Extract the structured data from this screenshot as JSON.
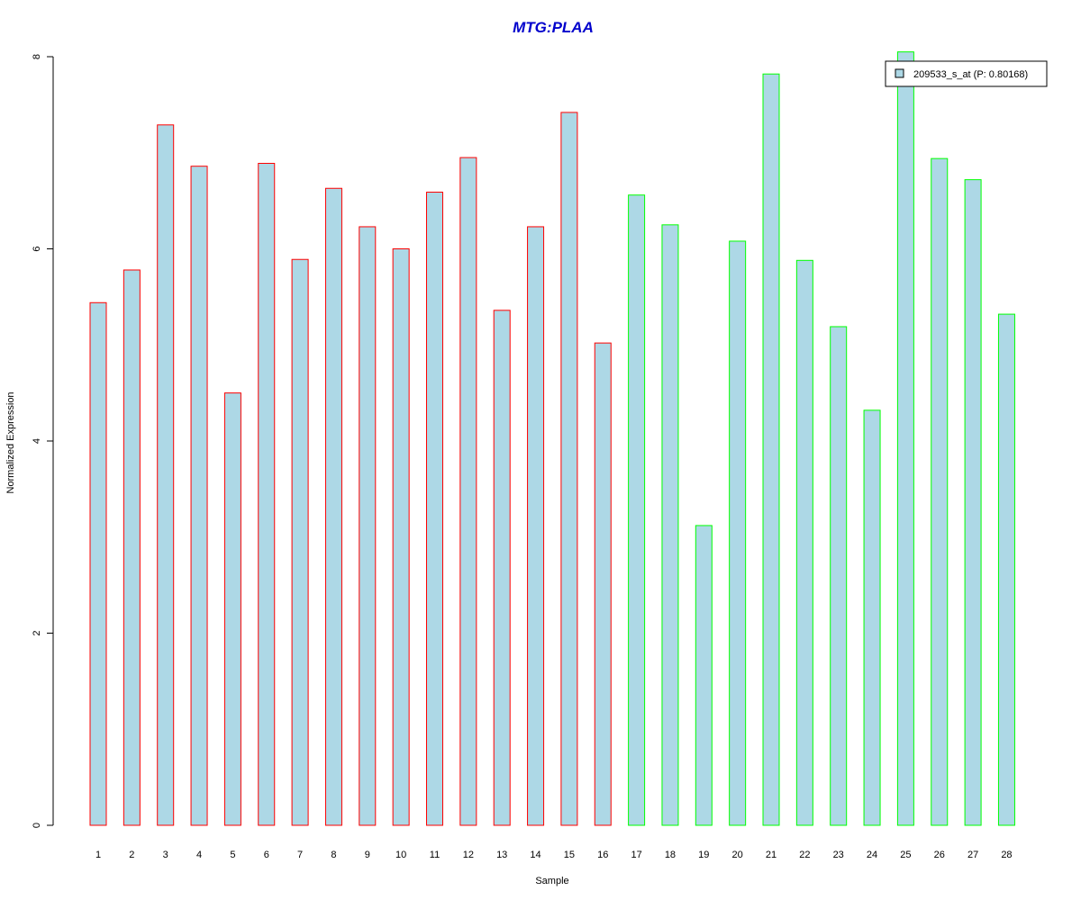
{
  "chart_data": {
    "type": "bar",
    "title": "MTG:PLAA",
    "xlabel": "Sample",
    "ylabel": "Normalized Expression",
    "ylim": [
      0,
      8
    ],
    "yticks": [
      "0",
      "2",
      "4",
      "6",
      "8"
    ],
    "categories": [
      "1",
      "2",
      "3",
      "4",
      "5",
      "6",
      "7",
      "8",
      "9",
      "10",
      "11",
      "12",
      "13",
      "14",
      "15",
      "16",
      "17",
      "18",
      "19",
      "20",
      "21",
      "22",
      "23",
      "24",
      "25",
      "26",
      "27",
      "28"
    ],
    "values": [
      5.44,
      5.78,
      7.29,
      6.86,
      4.5,
      6.89,
      5.89,
      6.63,
      6.23,
      6.0,
      6.59,
      6.95,
      5.36,
      6.23,
      7.42,
      5.02,
      6.56,
      6.25,
      3.12,
      6.08,
      7.82,
      5.88,
      5.19,
      4.32,
      8.05,
      6.94,
      6.72,
      5.32
    ],
    "groups": [
      "red",
      "red",
      "red",
      "red",
      "red",
      "red",
      "red",
      "red",
      "red",
      "red",
      "red",
      "red",
      "red",
      "red",
      "red",
      "red",
      "green",
      "green",
      "green",
      "green",
      "green",
      "green",
      "green",
      "green",
      "green",
      "green",
      "green",
      "green"
    ],
    "legend": {
      "label": "209533_s_at (P: 0.80168)",
      "position": "top-right"
    },
    "grid": false,
    "colors": {
      "fill": "#add8e6",
      "red": "#ff0000",
      "green": "#00ff00",
      "title": "#0000cc"
    }
  }
}
